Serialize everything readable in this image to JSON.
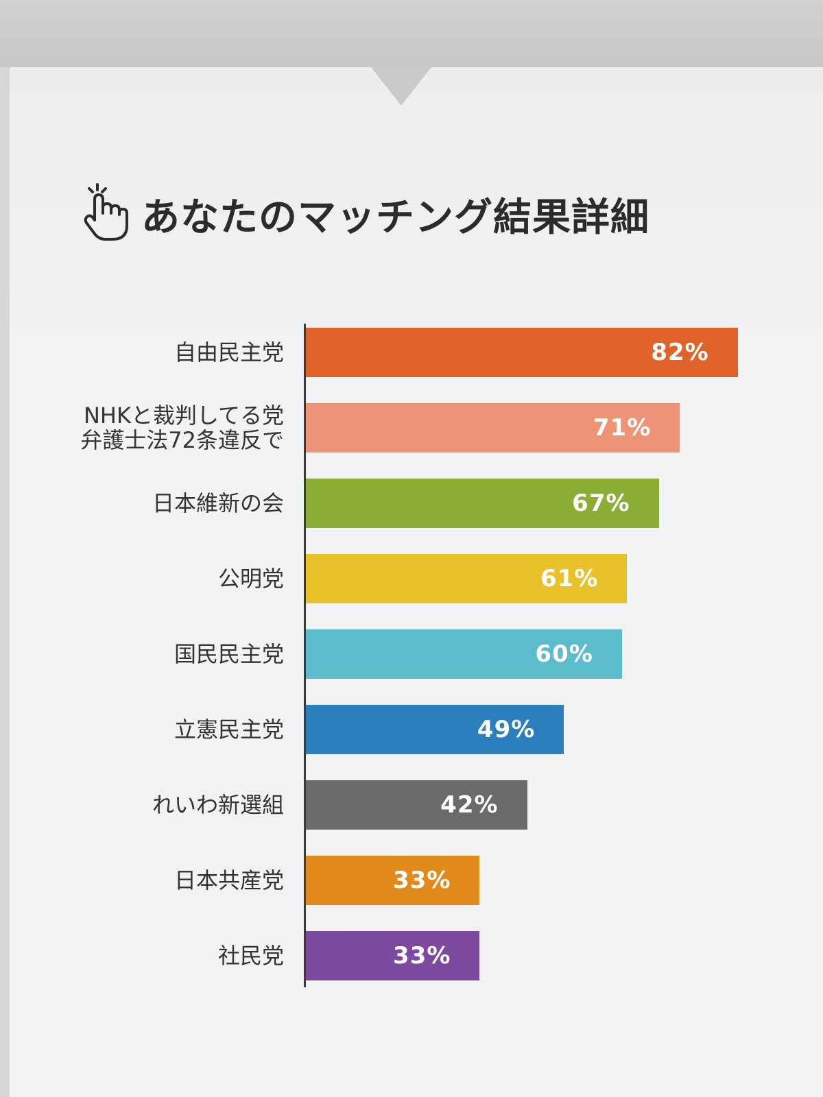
{
  "heading": {
    "title": "あなたのマッチング結果詳細",
    "icon": "pointing-hand-icon"
  },
  "chart_data": {
    "type": "bar",
    "orientation": "horizontal",
    "title": "あなたのマッチング結果詳細",
    "categories": [
      [
        "自由民主党"
      ],
      [
        "NHKと裁判してる党",
        "弁護士法72条違反で"
      ],
      [
        "日本維新の会"
      ],
      [
        "公明党"
      ],
      [
        "国民民主党"
      ],
      [
        "立憲民主党"
      ],
      [
        "れいわ新選組"
      ],
      [
        "日本共産党"
      ],
      [
        "社民党"
      ]
    ],
    "values": [
      82,
      71,
      67,
      61,
      60,
      49,
      42,
      33,
      33
    ],
    "value_labels": [
      "82%",
      "71%",
      "67%",
      "61%",
      "60%",
      "49%",
      "42%",
      "33%",
      "33%"
    ],
    "colors": [
      "#e0632a",
      "#ee9476",
      "#8cad35",
      "#e9c22b",
      "#5bbccb",
      "#2c7fbf",
      "#6a6a6a",
      "#e38a1c",
      "#7d4aa0"
    ],
    "xlim": [
      0,
      100
    ],
    "grid": false,
    "legend": "none"
  }
}
